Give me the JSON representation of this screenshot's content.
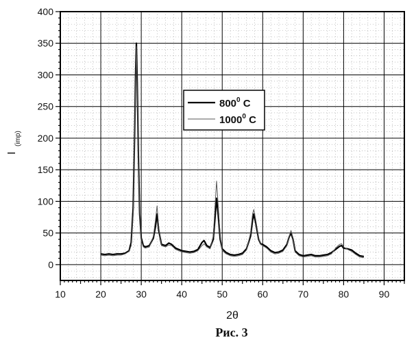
{
  "chart_data": {
    "type": "line",
    "title": "",
    "xlabel": "2θ",
    "ylabel_main": "I",
    "ylabel_sub": "(imp)",
    "caption": "Рис. 3",
    "xlim": [
      10,
      95
    ],
    "ylim": [
      -25,
      400
    ],
    "xticks": [
      10,
      20,
      30,
      40,
      50,
      60,
      70,
      80,
      90
    ],
    "yticks": [
      0,
      50,
      100,
      150,
      200,
      250,
      300,
      350,
      400
    ],
    "grid": true,
    "legend_position": "center",
    "legend": [
      {
        "base": "800",
        "sup": "0",
        "unit": " C"
      },
      {
        "base": "1000",
        "sup": "0",
        "unit": " C"
      }
    ],
    "series": [
      {
        "name": "800° C",
        "color": "#000000",
        "points": [
          [
            20,
            17
          ],
          [
            21,
            16
          ],
          [
            22,
            17
          ],
          [
            23,
            16
          ],
          [
            24,
            17
          ],
          [
            25,
            17
          ],
          [
            26,
            18
          ],
          [
            27,
            22
          ],
          [
            27.5,
            35
          ],
          [
            28,
            90
          ],
          [
            28.4,
            220
          ],
          [
            28.6,
            300
          ],
          [
            28.8,
            350
          ],
          [
            29,
            290
          ],
          [
            29.3,
            170
          ],
          [
            29.6,
            80
          ],
          [
            30,
            42
          ],
          [
            30.5,
            30
          ],
          [
            31,
            28
          ],
          [
            32,
            30
          ],
          [
            33,
            42
          ],
          [
            33.5,
            60
          ],
          [
            33.9,
            80
          ],
          [
            34.3,
            55
          ],
          [
            35,
            32
          ],
          [
            36,
            30
          ],
          [
            36.8,
            34
          ],
          [
            37.5,
            32
          ],
          [
            38.5,
            26
          ],
          [
            40,
            22
          ],
          [
            42,
            20
          ],
          [
            43,
            21
          ],
          [
            44,
            24
          ],
          [
            45,
            35
          ],
          [
            45.5,
            38
          ],
          [
            46.2,
            30
          ],
          [
            47,
            27
          ],
          [
            47.8,
            40
          ],
          [
            48.3,
            80
          ],
          [
            48.6,
            105
          ],
          [
            49,
            80
          ],
          [
            49.5,
            40
          ],
          [
            50,
            25
          ],
          [
            51,
            19
          ],
          [
            52,
            16
          ],
          [
            53,
            15
          ],
          [
            54,
            16
          ],
          [
            55,
            18
          ],
          [
            56,
            25
          ],
          [
            57,
            45
          ],
          [
            57.5,
            70
          ],
          [
            57.8,
            80
          ],
          [
            58.3,
            65
          ],
          [
            59,
            40
          ],
          [
            59.5,
            33
          ],
          [
            60,
            32
          ],
          [
            61,
            28
          ],
          [
            62,
            22
          ],
          [
            63,
            19
          ],
          [
            64,
            20
          ],
          [
            65,
            23
          ],
          [
            66,
            32
          ],
          [
            66.5,
            43
          ],
          [
            67,
            50
          ],
          [
            67.5,
            40
          ],
          [
            68,
            22
          ],
          [
            69,
            16
          ],
          [
            70,
            14
          ],
          [
            71,
            15
          ],
          [
            72,
            16
          ],
          [
            73,
            14
          ],
          [
            74,
            14
          ],
          [
            75,
            15
          ],
          [
            76,
            16
          ],
          [
            77,
            19
          ],
          [
            78,
            24
          ],
          [
            79,
            29
          ],
          [
            79.5,
            30
          ],
          [
            80,
            26
          ],
          [
            81,
            25
          ],
          [
            82,
            23
          ],
          [
            83,
            18
          ],
          [
            84,
            14
          ],
          [
            85,
            13
          ]
        ]
      },
      {
        "name": "1000° C",
        "color": "#555555",
        "points": [
          [
            20,
            15
          ],
          [
            21,
            14
          ],
          [
            22,
            15
          ],
          [
            23,
            14
          ],
          [
            24,
            15
          ],
          [
            25,
            15
          ],
          [
            26,
            17
          ],
          [
            27,
            21
          ],
          [
            27.5,
            30
          ],
          [
            28,
            80
          ],
          [
            28.4,
            210
          ],
          [
            28.6,
            290
          ],
          [
            28.8,
            345
          ],
          [
            29,
            280
          ],
          [
            29.3,
            160
          ],
          [
            29.6,
            75
          ],
          [
            30,
            38
          ],
          [
            30.5,
            28
          ],
          [
            31,
            26
          ],
          [
            32,
            28
          ],
          [
            33,
            45
          ],
          [
            33.5,
            70
          ],
          [
            33.9,
            93
          ],
          [
            34.3,
            60
          ],
          [
            35,
            30
          ],
          [
            36,
            28
          ],
          [
            36.8,
            31
          ],
          [
            37.5,
            30
          ],
          [
            38.5,
            24
          ],
          [
            40,
            20
          ],
          [
            42,
            18
          ],
          [
            43,
            19
          ],
          [
            44,
            22
          ],
          [
            45,
            30
          ],
          [
            45.5,
            33
          ],
          [
            46.2,
            28
          ],
          [
            47,
            25
          ],
          [
            47.8,
            45
          ],
          [
            48.3,
            100
          ],
          [
            48.6,
            132
          ],
          [
            49,
            95
          ],
          [
            49.5,
            45
          ],
          [
            50,
            22
          ],
          [
            51,
            17
          ],
          [
            52,
            14
          ],
          [
            53,
            13
          ],
          [
            54,
            14
          ],
          [
            55,
            16
          ],
          [
            56,
            23
          ],
          [
            57,
            50
          ],
          [
            57.5,
            80
          ],
          [
            57.8,
            87
          ],
          [
            58.3,
            70
          ],
          [
            59,
            42
          ],
          [
            59.5,
            32
          ],
          [
            60,
            30
          ],
          [
            61,
            26
          ],
          [
            62,
            20
          ],
          [
            63,
            17
          ],
          [
            64,
            18
          ],
          [
            65,
            21
          ],
          [
            66,
            30
          ],
          [
            66.5,
            44
          ],
          [
            67,
            54
          ],
          [
            67.5,
            42
          ],
          [
            68,
            20
          ],
          [
            69,
            14
          ],
          [
            70,
            12
          ],
          [
            71,
            13
          ],
          [
            72,
            14
          ],
          [
            73,
            12
          ],
          [
            74,
            12
          ],
          [
            75,
            13
          ],
          [
            76,
            14
          ],
          [
            77,
            17
          ],
          [
            78,
            26
          ],
          [
            79,
            32
          ],
          [
            79.5,
            33
          ],
          [
            80,
            28
          ],
          [
            81,
            24
          ],
          [
            82,
            21
          ],
          [
            83,
            16
          ],
          [
            84,
            12
          ],
          [
            85,
            11
          ]
        ]
      }
    ]
  }
}
